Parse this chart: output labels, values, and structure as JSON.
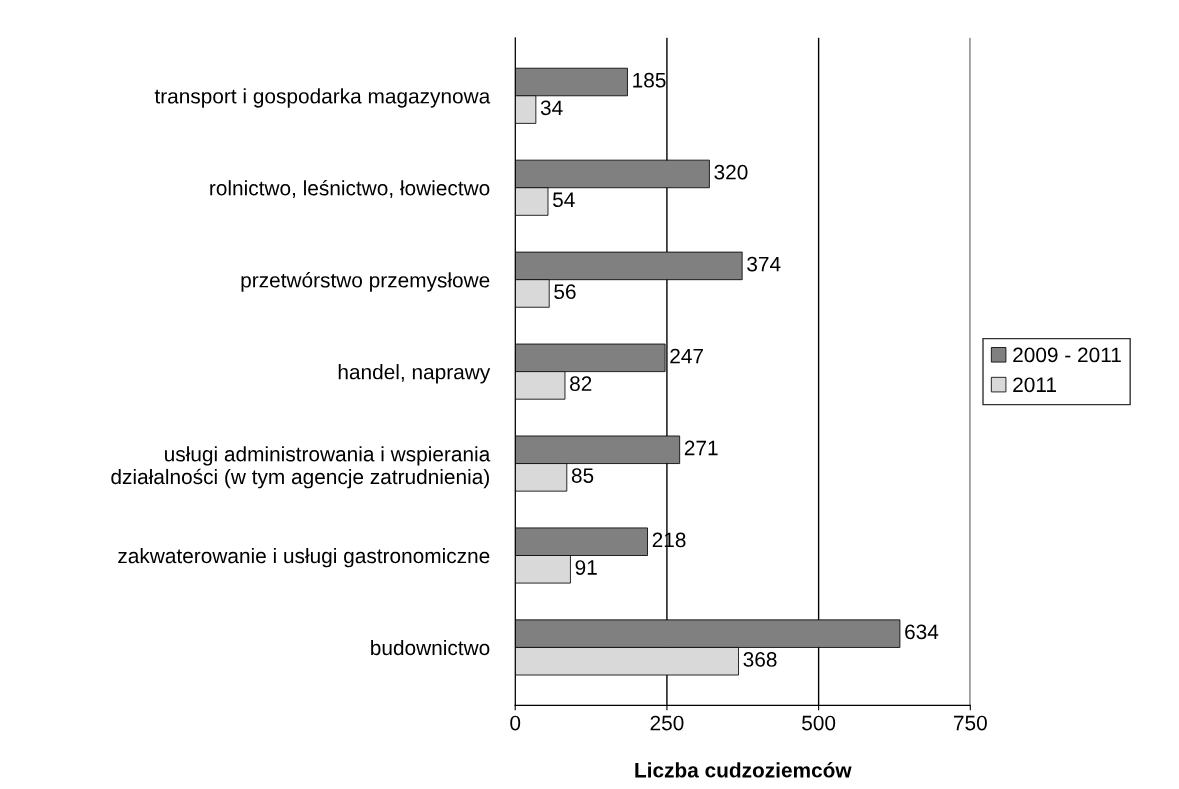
{
  "chart_data": {
    "type": "bar",
    "orientation": "horizontal",
    "xlabel": "Liczba cudzoziemców",
    "categories": [
      "transport i gospodarka magazynowa",
      "rolnictwo, leśnictwo, łowiectwo",
      "przetwórstwo przemysłowe",
      "handel, naprawy",
      "usługi administrowania i wspierania\ndziałalności (w tym agencje zatrudnienia)",
      "zakwaterowanie i usługi gastronomiczne",
      "budownictwo"
    ],
    "series": [
      {
        "name": "2009 - 2011",
        "color": "#808080",
        "values": [
          185,
          320,
          374,
          247,
          271,
          218,
          634
        ]
      },
      {
        "name": "2011",
        "color": "#d9d9d9",
        "values": [
          34,
          54,
          56,
          82,
          85,
          91,
          368
        ]
      }
    ],
    "xlim": [
      0,
      750
    ],
    "xticks": [
      0,
      250,
      500,
      750
    ],
    "grid": "x",
    "legend": "right",
    "data_labels": true
  }
}
